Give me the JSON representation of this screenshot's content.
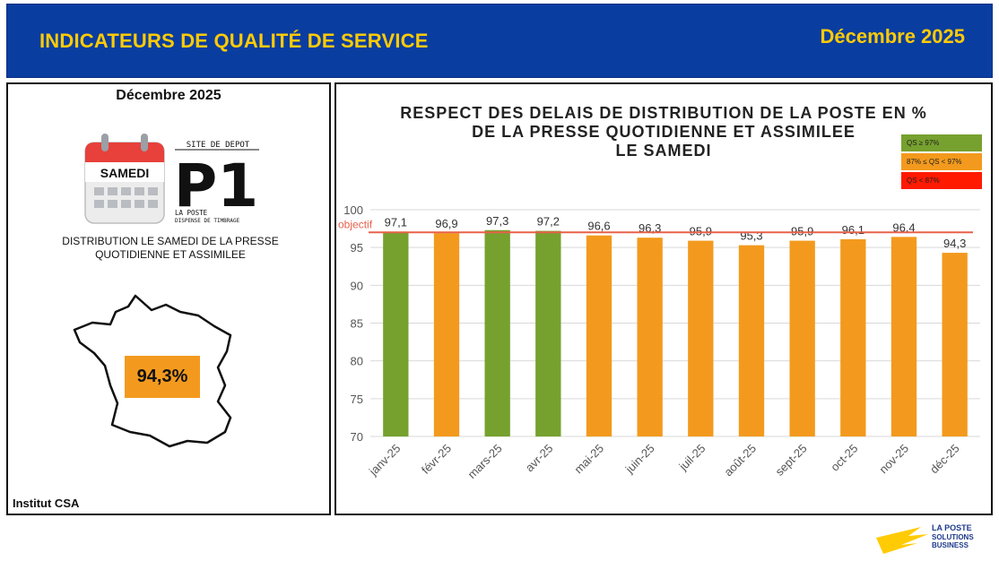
{
  "header": {
    "title": "INDICATEURS DE QUALITÉ DE SERVICE",
    "date": "Décembre 2025"
  },
  "left": {
    "date": "Décembre 2025",
    "calendar_label": "SAMEDI",
    "logo": {
      "line1": "SITE DE DEPOT",
      "big": "P1",
      "line2": "LA POSTE",
      "line3": "DISPENSE DE TIMBRAGE"
    },
    "description": "DISTRIBUTION LE SAMEDI DE LA PRESSE QUOTIDIENNE ET ASSIMILEE",
    "result": "94,3%",
    "source": "Institut CSA",
    "icons": {
      "calendar": "calendar-icon",
      "map": "france-map-icon"
    }
  },
  "chart_data": {
    "type": "bar",
    "title_lines": [
      "RESPECT DES DELAIS DE DISTRIBUTION DE LA POSTE EN %",
      "DE LA PRESSE QUOTIDIENNE ET ASSIMILEE",
      "LE SAMEDI"
    ],
    "categories": [
      "janv-25",
      "févr-25",
      "mars-25",
      "avr-25",
      "mai-25",
      "juin-25",
      "juil-25",
      "août-25",
      "sept-25",
      "oct-25",
      "nov-25",
      "déc-25"
    ],
    "values": [
      97.1,
      96.9,
      97.3,
      97.2,
      96.6,
      96.3,
      95.9,
      95.3,
      95.9,
      96.1,
      96.4,
      94.3
    ],
    "value_labels": [
      "97,1",
      "96,9",
      "97,3",
      "97,2",
      "96,6",
      "96,3",
      "95,9",
      "95,3",
      "95,9",
      "96,1",
      "96,4",
      "94,3"
    ],
    "bar_colors": [
      "#76a12e",
      "#f39a1e",
      "#76a12e",
      "#76a12e",
      "#f39a1e",
      "#f39a1e",
      "#f39a1e",
      "#f39a1e",
      "#f39a1e",
      "#f39a1e",
      "#f39a1e",
      "#f39a1e"
    ],
    "yticks": [
      70,
      75,
      80,
      85,
      90,
      95,
      100
    ],
    "ylim": [
      70,
      100
    ],
    "objective": {
      "label": "objectif",
      "value": 97,
      "color": "#e8604a"
    },
    "legend": [
      {
        "label": "QS ≥ 97%",
        "color": "#76a12e"
      },
      {
        "label": "87% ≤ QS < 97%",
        "color": "#f39a1e"
      },
      {
        "label": "QS < 87%",
        "color": "#ff1a00"
      }
    ],
    "grid": true
  },
  "brand": {
    "line1": "LA POSTE",
    "line2": "SOLUTIONS",
    "line3": "BUSINESS"
  },
  "colors": {
    "header_bg": "#0a3da0",
    "accent": "#ffcb05",
    "green": "#76a12e",
    "orange": "#f39a1e",
    "red": "#ff1a00"
  }
}
